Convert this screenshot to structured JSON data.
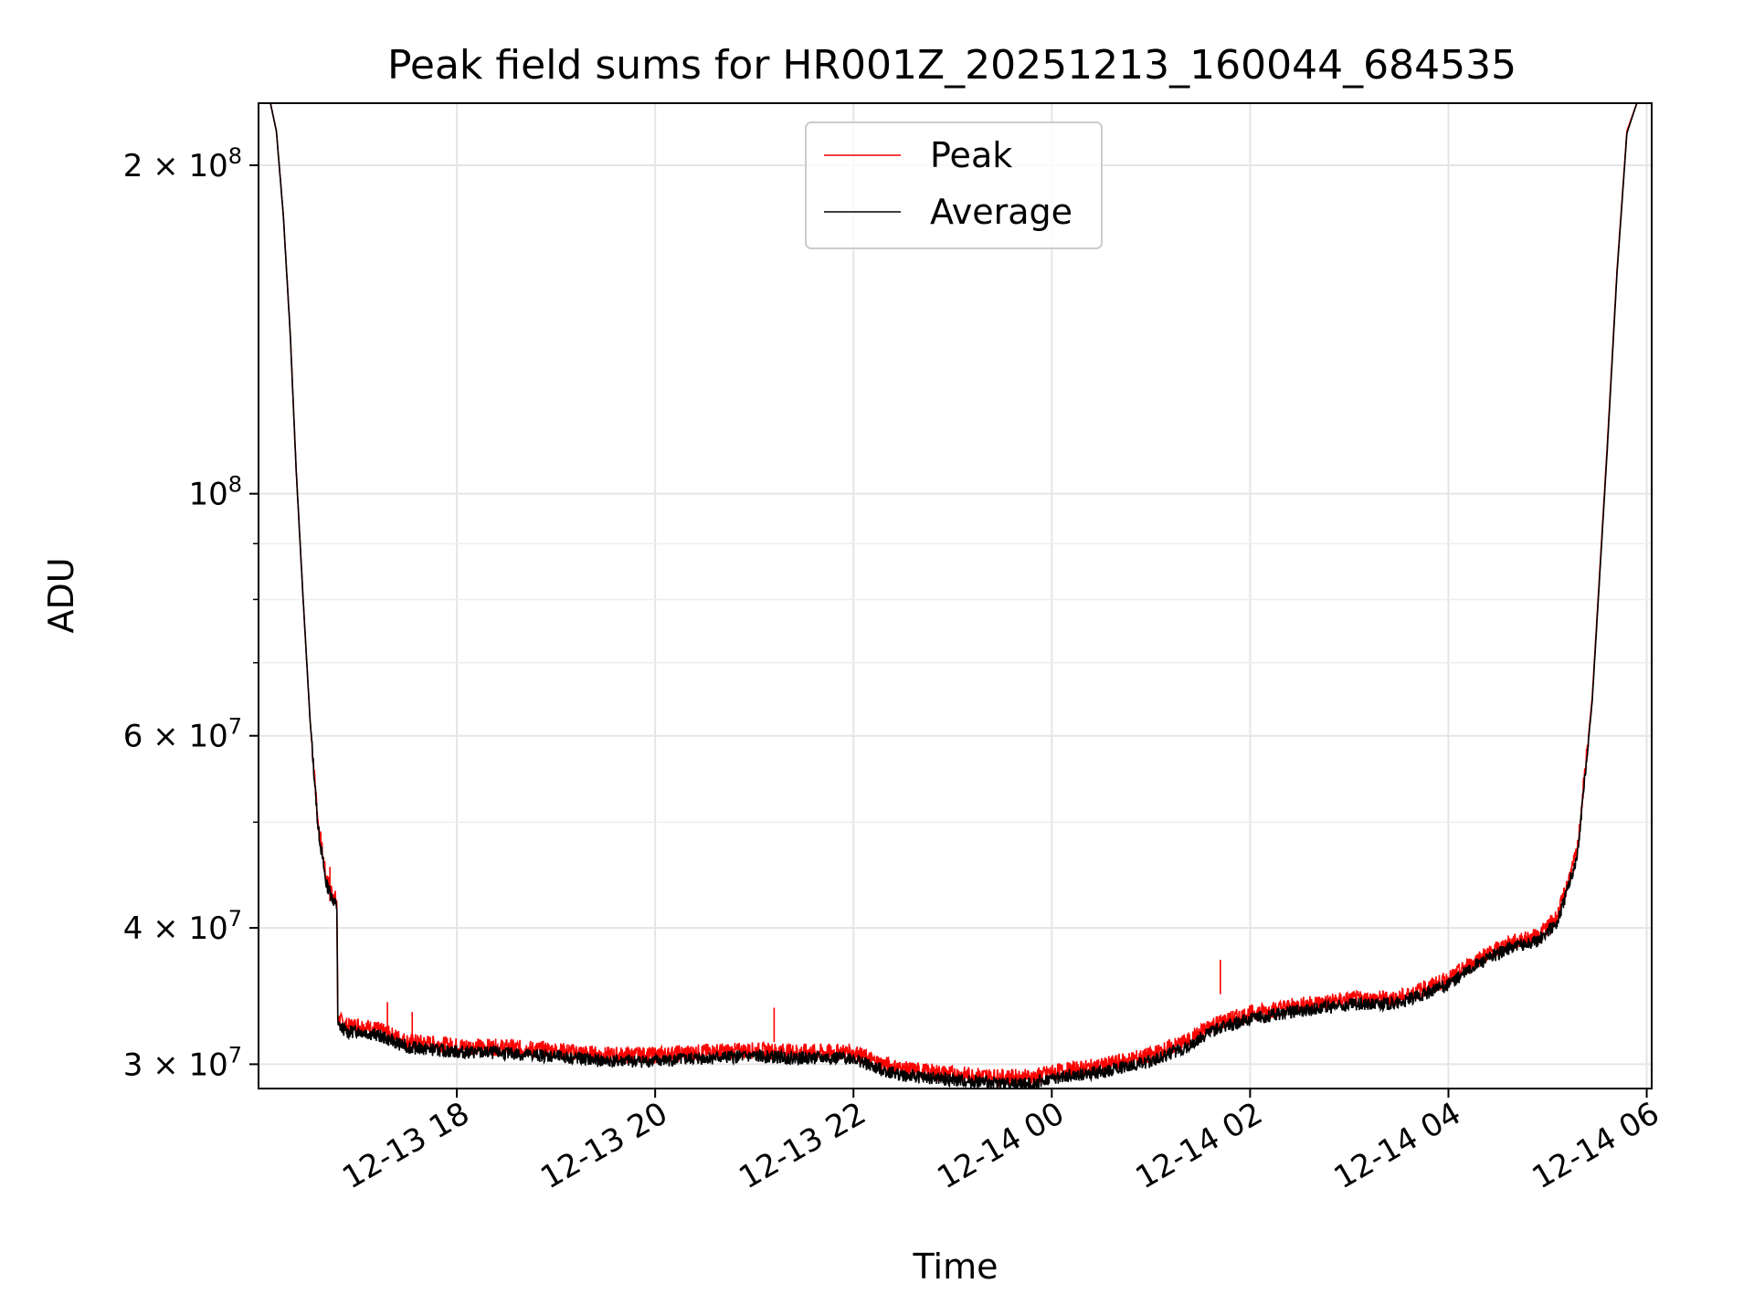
{
  "chart_data": {
    "type": "line",
    "title": "Peak field sums for HR001Z_20251213_160044_684535",
    "xlabel": "Time",
    "ylabel": "ADU",
    "yscale": "log",
    "ylim": [
      28500000,
      228000000
    ],
    "xlim_hours": [
      16.0,
      30.05
    ],
    "grid": true,
    "legend_position": "top-center",
    "x_ticks": [
      {
        "label": "12-13 18",
        "hour": 18
      },
      {
        "label": "12-13 20",
        "hour": 20
      },
      {
        "label": "12-13 22",
        "hour": 22
      },
      {
        "label": "12-14 00",
        "hour": 24
      },
      {
        "label": "12-14 02",
        "hour": 26
      },
      {
        "label": "12-14 04",
        "hour": 28
      },
      {
        "label": "12-14 06",
        "hour": 30
      }
    ],
    "y_ticks": [
      {
        "value": 30000000,
        "mant": "3",
        "exp": "7"
      },
      {
        "value": 40000000,
        "mant": "4",
        "exp": "7"
      },
      {
        "value": 60000000,
        "mant": "6",
        "exp": "7"
      },
      {
        "value": 100000000,
        "mant": "",
        "exp": "8"
      },
      {
        "value": 200000000,
        "mant": "2",
        "exp": "8"
      }
    ],
    "y_minor_ticks": [
      50000000,
      70000000,
      80000000,
      90000000
    ],
    "series": [
      {
        "name": "Peak",
        "color": "#ff0000",
        "points": [
          [
            16.0,
            228000000
          ],
          [
            16.12,
            228000000
          ],
          [
            16.18,
            215000000
          ],
          [
            16.25,
            180000000
          ],
          [
            16.32,
            140000000
          ],
          [
            16.38,
            105000000
          ],
          [
            16.45,
            80000000
          ],
          [
            16.52,
            62000000
          ],
          [
            16.6,
            50000000
          ],
          [
            16.68,
            44500000
          ],
          [
            16.75,
            43000000
          ],
          [
            16.79,
            42300000
          ],
          [
            16.8,
            33000000
          ],
          [
            16.9,
            32500000
          ],
          [
            17.0,
            32600000
          ],
          [
            17.2,
            32300000
          ],
          [
            17.5,
            31500000
          ],
          [
            18.0,
            31200000
          ],
          [
            18.5,
            31100000
          ],
          [
            19.0,
            30900000
          ],
          [
            19.5,
            30600000
          ],
          [
            20.0,
            30600000
          ],
          [
            20.5,
            30800000
          ],
          [
            21.0,
            30900000
          ],
          [
            21.5,
            30800000
          ],
          [
            22.0,
            30800000
          ],
          [
            22.2,
            30200000
          ],
          [
            22.5,
            29700000
          ],
          [
            23.0,
            29400000
          ],
          [
            23.5,
            29200000
          ],
          [
            23.8,
            29200000
          ],
          [
            24.0,
            29500000
          ],
          [
            24.5,
            29900000
          ],
          [
            25.0,
            30600000
          ],
          [
            25.4,
            31600000
          ],
          [
            25.6,
            32600000
          ],
          [
            26.0,
            33400000
          ],
          [
            26.5,
            34000000
          ],
          [
            27.0,
            34400000
          ],
          [
            27.5,
            34500000
          ],
          [
            28.0,
            35900000
          ],
          [
            28.3,
            37500000
          ],
          [
            28.6,
            38700000
          ],
          [
            28.9,
            39300000
          ],
          [
            29.1,
            41000000
          ],
          [
            29.3,
            47000000
          ],
          [
            29.45,
            65000000
          ],
          [
            29.6,
            110000000
          ],
          [
            29.7,
            160000000
          ],
          [
            29.8,
            215000000
          ],
          [
            29.9,
            228000000
          ],
          [
            30.05,
            228000000
          ]
        ]
      },
      {
        "name": "Average",
        "color": "#000000",
        "points": [
          [
            16.0,
            228000000
          ],
          [
            16.12,
            228000000
          ],
          [
            16.18,
            215000000
          ],
          [
            16.25,
            180000000
          ],
          [
            16.32,
            140000000
          ],
          [
            16.38,
            105000000
          ],
          [
            16.45,
            80000000
          ],
          [
            16.52,
            62000000
          ],
          [
            16.6,
            49500000
          ],
          [
            16.68,
            44000000
          ],
          [
            16.75,
            42500000
          ],
          [
            16.79,
            41800000
          ],
          [
            16.8,
            32600000
          ],
          [
            16.9,
            32100000
          ],
          [
            17.0,
            32200000
          ],
          [
            17.2,
            31900000
          ],
          [
            17.5,
            31100000
          ],
          [
            18.0,
            30800000
          ],
          [
            18.5,
            30700000
          ],
          [
            19.0,
            30500000
          ],
          [
            19.5,
            30200000
          ],
          [
            20.0,
            30200000
          ],
          [
            20.5,
            30400000
          ],
          [
            21.0,
            30500000
          ],
          [
            21.5,
            30400000
          ],
          [
            22.0,
            30400000
          ],
          [
            22.2,
            29800000
          ],
          [
            22.5,
            29300000
          ],
          [
            23.0,
            29000000
          ],
          [
            23.5,
            28800000
          ],
          [
            23.8,
            28800000
          ],
          [
            24.0,
            29100000
          ],
          [
            24.5,
            29500000
          ],
          [
            25.0,
            30200000
          ],
          [
            25.4,
            31200000
          ],
          [
            25.6,
            32200000
          ],
          [
            26.0,
            33000000
          ],
          [
            26.5,
            33600000
          ],
          [
            27.0,
            34000000
          ],
          [
            27.5,
            34100000
          ],
          [
            28.0,
            35500000
          ],
          [
            28.3,
            37100000
          ],
          [
            28.6,
            38300000
          ],
          [
            28.9,
            38900000
          ],
          [
            29.1,
            40500000
          ],
          [
            29.3,
            46500000
          ],
          [
            29.45,
            64500000
          ],
          [
            29.6,
            109000000
          ],
          [
            29.7,
            159000000
          ],
          [
            29.8,
            214000000
          ],
          [
            29.9,
            228000000
          ],
          [
            30.05,
            228000000
          ]
        ]
      }
    ],
    "spikes": [
      {
        "x": 16.72,
        "y": 45500000
      },
      {
        "x": 17.3,
        "y": 34200000
      },
      {
        "x": 17.55,
        "y": 33500000
      },
      {
        "x": 21.2,
        "y": 33800000
      },
      {
        "x": 25.7,
        "y": 37400000
      }
    ]
  }
}
